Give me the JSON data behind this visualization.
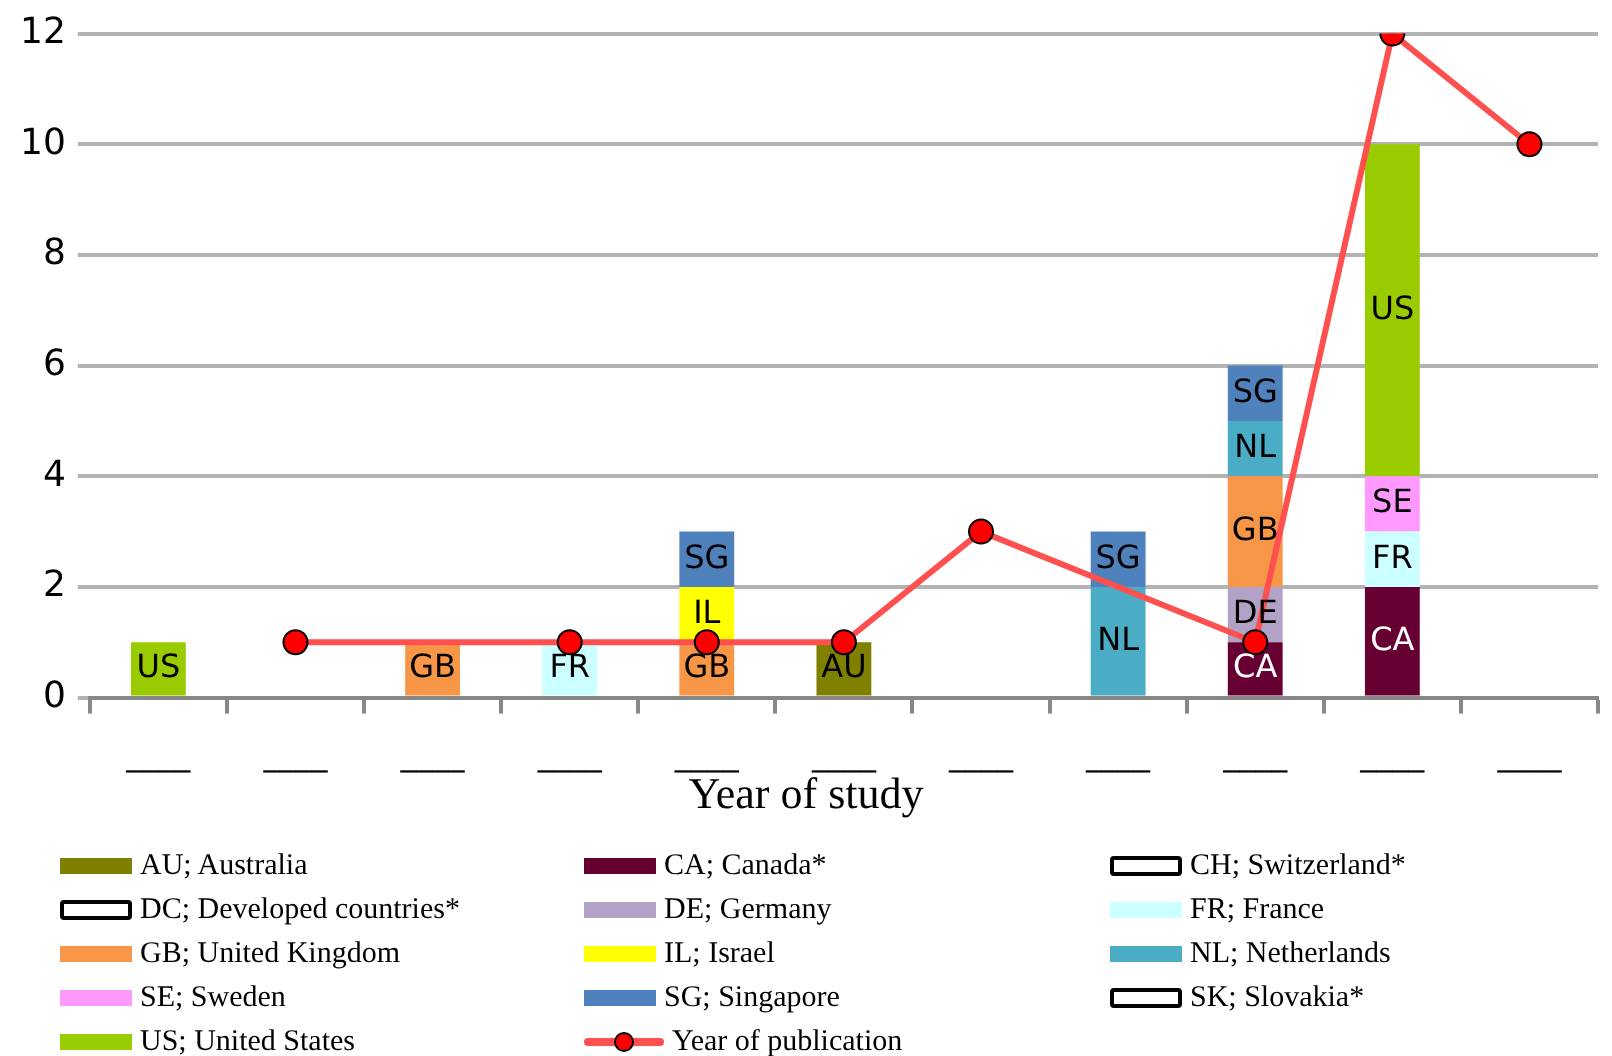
{
  "chart_data": {
    "type": "bar",
    "stacked": true,
    "xlabel": "Year of study",
    "categories": [
      "____",
      "____",
      "____",
      "____",
      "____",
      "____",
      "____",
      "____",
      "____",
      "____",
      "____"
    ],
    "ylim": [
      0,
      12
    ],
    "yticks": [
      0,
      2,
      4,
      6,
      8,
      10,
      12
    ],
    "grid": "y",
    "legend": "bottom",
    "series": [
      {
        "name": "AU; Australia",
        "color": "#808000",
        "values": [
          null,
          null,
          null,
          null,
          null,
          1,
          null,
          null,
          null,
          null,
          null
        ],
        "value_labels": [
          null,
          null,
          null,
          null,
          null,
          "AU",
          null,
          null,
          null,
          null,
          null
        ]
      },
      {
        "name": "CA; Canada*",
        "color": "#660033",
        "values": [
          null,
          null,
          null,
          null,
          null,
          null,
          null,
          null,
          1,
          2,
          null
        ],
        "value_labels": [
          null,
          null,
          null,
          null,
          null,
          null,
          null,
          null,
          "CA",
          "CA",
          null
        ]
      },
      {
        "name": "CH; Switzerland*",
        "color": "#ffffff",
        "values": [
          null,
          null,
          null,
          null,
          null,
          null,
          null,
          null,
          null,
          null,
          null
        ]
      },
      {
        "name": "DC; Developed countries*",
        "color": "#ffffff",
        "values": [
          null,
          null,
          null,
          null,
          null,
          null,
          null,
          null,
          null,
          null,
          null
        ]
      },
      {
        "name": "DE; Germany",
        "color": "#b3a2c7",
        "values": [
          null,
          null,
          null,
          null,
          null,
          null,
          null,
          null,
          1,
          null,
          null
        ],
        "value_labels": [
          null,
          null,
          null,
          null,
          null,
          null,
          null,
          null,
          "DE",
          null,
          null
        ]
      },
      {
        "name": "FR; France",
        "color": "#ccffff",
        "values": [
          null,
          null,
          null,
          1,
          null,
          null,
          null,
          null,
          null,
          1,
          null
        ],
        "value_labels": [
          null,
          null,
          null,
          "FR",
          null,
          null,
          null,
          null,
          null,
          "FR",
          null
        ]
      },
      {
        "name": "GB; United Kingdom",
        "color": "#f79646",
        "values": [
          null,
          null,
          1,
          null,
          1,
          null,
          null,
          null,
          2,
          null,
          null
        ],
        "value_labels": [
          null,
          null,
          "GB",
          null,
          "GB",
          null,
          null,
          null,
          "GB",
          null,
          null
        ]
      },
      {
        "name": "IL; Israel",
        "color": "#ffff00",
        "values": [
          null,
          null,
          null,
          null,
          1,
          null,
          null,
          null,
          null,
          null,
          null
        ],
        "value_labels": [
          null,
          null,
          null,
          null,
          "IL",
          null,
          null,
          null,
          null,
          null,
          null
        ]
      },
      {
        "name": "NL; Netherlands",
        "color": "#4bacc6",
        "values": [
          null,
          null,
          null,
          null,
          null,
          null,
          null,
          2,
          1,
          null,
          null
        ],
        "value_labels": [
          null,
          null,
          null,
          null,
          null,
          null,
          null,
          "NL",
          "NL",
          null,
          null
        ]
      },
      {
        "name": "SE; Sweden",
        "color": "#ff99ff",
        "values": [
          null,
          null,
          null,
          null,
          null,
          null,
          null,
          null,
          null,
          1,
          null
        ],
        "value_labels": [
          null,
          null,
          null,
          null,
          null,
          null,
          null,
          null,
          null,
          "SE",
          null
        ]
      },
      {
        "name": "SG; Singapore",
        "color": "#4f81bd",
        "values": [
          null,
          null,
          null,
          null,
          1,
          null,
          null,
          1,
          1,
          null,
          null
        ],
        "value_labels": [
          null,
          null,
          null,
          null,
          "SG",
          null,
          null,
          "SG",
          "SG",
          null,
          null
        ]
      },
      {
        "name": "SK; Slovakia*",
        "color": "#ffffff",
        "values": [
          null,
          null,
          null,
          null,
          null,
          null,
          null,
          null,
          null,
          null,
          null
        ]
      },
      {
        "name": "US; United States",
        "color": "#99cc00",
        "values": [
          1,
          null,
          null,
          null,
          null,
          null,
          null,
          null,
          null,
          6,
          null
        ],
        "value_labels": [
          "US",
          null,
          null,
          null,
          null,
          null,
          null,
          null,
          null,
          "US",
          null
        ]
      },
      {
        "name": "Year of publication",
        "type": "line",
        "color": "#ff5050",
        "marker": "circle",
        "line_style": "solid",
        "values": [
          null,
          1,
          null,
          1,
          1,
          1,
          3,
          null,
          1,
          12,
          10
        ]
      }
    ]
  }
}
